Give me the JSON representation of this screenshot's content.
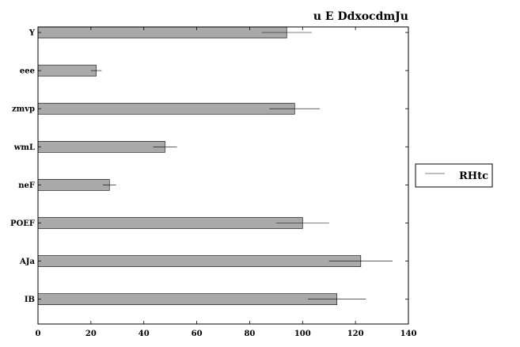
{
  "chart_data": {
    "type": "bar",
    "orientation": "horizontal",
    "title": "u E  DdxocdmJu",
    "xlabel": "",
    "ylabel": "",
    "xlim": [
      0,
      140
    ],
    "xticks": [
      0,
      20,
      40,
      60,
      80,
      100,
      120,
      140
    ],
    "categories": [
      "Y",
      "eee",
      "zmvp",
      "wmL",
      "neF",
      "POEF",
      "AJa",
      "IB"
    ],
    "series": [
      {
        "name": "RHtc",
        "values": [
          94,
          22,
          97,
          48,
          27,
          100,
          122,
          113
        ],
        "errors": [
          9.5,
          2,
          9.5,
          4.5,
          2.5,
          10,
          12,
          11
        ]
      }
    ],
    "grid": false,
    "legend": {
      "position": "right",
      "entries": [
        "RHtc"
      ]
    },
    "colors": {
      "bar": "#a9a9a9",
      "edge": "#000000",
      "error": "#000000"
    }
  }
}
